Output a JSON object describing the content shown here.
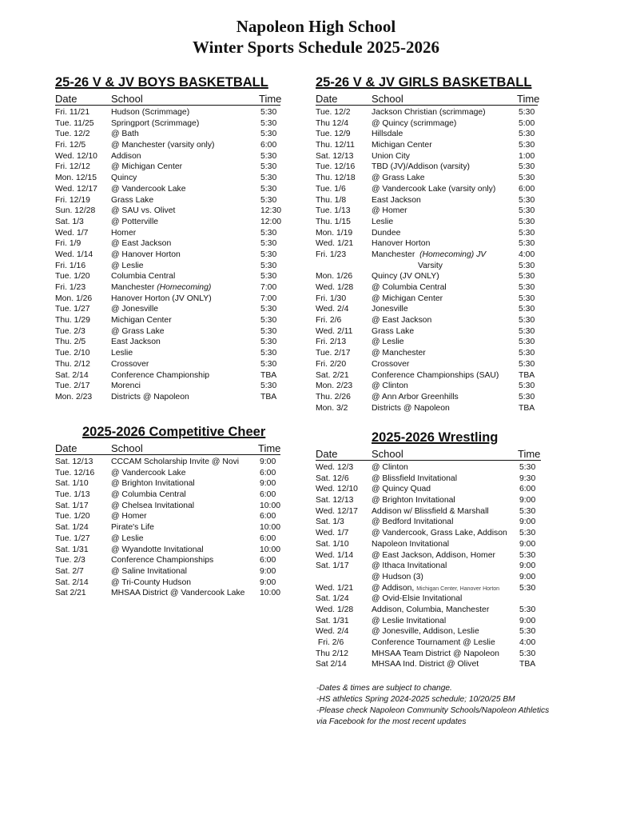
{
  "header": {
    "line1": "Napoleon High School",
    "line2": "Winter Sports Schedule 2025-2026"
  },
  "columns": {
    "date": "Date",
    "school": "School",
    "time": "Time"
  },
  "boys": {
    "title": "25-26 V & JV BOYS BASKETBALL",
    "rows": [
      {
        "date": "Fri. 11/21",
        "school": "Hudson (Scrimmage)",
        "time": "5:30"
      },
      {
        "date": "Tue. 11/25",
        "school": "Springport (Scrimmage)",
        "time": "5:30"
      },
      {
        "date": "Tue. 12/2",
        "school": "@ Bath",
        "time": "5:30"
      },
      {
        "date": "Fri. 12/5",
        "school": "@ Manchester (varsity only)",
        "time": "6:00"
      },
      {
        "date": "Wed. 12/10",
        "school": "Addison",
        "time": "5:30"
      },
      {
        "date": "Fri. 12/12",
        "school": "@ Michigan Center",
        "time": "5:30"
      },
      {
        "date": "Mon. 12/15",
        "school": "Quincy",
        "time": "5:30"
      },
      {
        "date": "Wed. 12/17",
        "school": "@ Vandercook Lake",
        "time": "5:30"
      },
      {
        "date": "Fri. 12/19",
        "school": "Grass Lake",
        "time": "5:30"
      },
      {
        "date": "Sun. 12/28",
        "school": "@ SAU vs. Olivet",
        "time": "12:30"
      },
      {
        "date": "Sat. 1/3",
        "school": "@ Potterville",
        "time": "12:00"
      },
      {
        "date": "Wed. 1/7",
        "school": "Homer",
        "time": "5:30"
      },
      {
        "date": "Fri. 1/9",
        "school": "@ East Jackson",
        "time": "5:30"
      },
      {
        "date": "Wed. 1/14",
        "school": "@ Hanover Horton",
        "time": "5:30"
      },
      {
        "date": "Fri. 1/16",
        "school": "@ Leslie",
        "time": "5:30"
      },
      {
        "date": "Tue. 1/20",
        "school": "Columbia Central",
        "time": "5:30"
      },
      {
        "date": "Fri. 1/23",
        "school": "Manchester ",
        "italic": "(Homecoming)",
        "time": "7:00"
      },
      {
        "date": "Mon. 1/26",
        "school": "Hanover Horton (JV ONLY)",
        "time": "7:00"
      },
      {
        "date": "Tue. 1/27",
        "school": "@ Jonesville",
        "time": "5:30"
      },
      {
        "date": "Thu. 1/29",
        "school": "Michigan Center",
        "time": "5:30"
      },
      {
        "date": "Tue. 2/3",
        "school": "@ Grass Lake",
        "time": "5:30"
      },
      {
        "date": "Thu. 2/5",
        "school": "East Jackson",
        "time": "5:30"
      },
      {
        "date": "Tue. 2/10",
        "school": "Leslie",
        "time": "5:30"
      },
      {
        "date": "Thu. 2/12",
        "school": "Crossover",
        "time": "5:30"
      },
      {
        "date": "Sat. 2/14",
        "school": "Conference Championship",
        "time": "TBA"
      },
      {
        "date": "Tue. 2/17",
        "school": "Morenci",
        "time": "5:30"
      },
      {
        "date": "Mon. 2/23",
        "school": "Districts @ Napoleon",
        "time": "TBA"
      }
    ]
  },
  "girls": {
    "title": "25-26 V & JV GIRLS BASKETBALL",
    "rows": [
      {
        "date": "Tue. 12/2",
        "school": "Jackson Christian (scrimmage)",
        "time": "5:30"
      },
      {
        "date": "Thu 12/4",
        "school": "@ Quincy (scrimmage)",
        "time": "5:00"
      },
      {
        "date": "Tue. 12/9",
        "school": "Hillsdale",
        "time": "5:30"
      },
      {
        "date": "Thu. 12/11",
        "school": "Michigan Center",
        "time": "5:30"
      },
      {
        "date": "Sat. 12/13",
        "school": "Union City",
        "time": "1:00"
      },
      {
        "date": "Tue. 12/16",
        "school": "TBD (JV)/Addison (varsity)",
        "time": "5:30"
      },
      {
        "date": "Thu. 12/18",
        "school": "@ Grass Lake",
        "time": "5:30"
      },
      {
        "date": "Tue. 1/6",
        "school": "@ Vandercook Lake (varsity only)",
        "time": "6:00"
      },
      {
        "date": "Thu. 1/8",
        "school": "East Jackson",
        "time": "5:30"
      },
      {
        "date": "Tue. 1/13",
        "school": "@ Homer",
        "time": "5:30"
      },
      {
        "date": "Thu. 1/15",
        "school": "Leslie",
        "time": "5:30"
      },
      {
        "date": "Mon. 1/19",
        "school": "Dundee",
        "time": "5:30"
      },
      {
        "date": "Wed. 1/21",
        "school": "Hanover Horton",
        "time": "5:30"
      },
      {
        "date": "Fri. 1/23",
        "school": "Manchester  ",
        "italic": "(Homecoming) JV",
        "time": "4:00"
      },
      {
        "date": "",
        "school": "",
        "indent": "Varsity",
        "time": "5:30"
      },
      {
        "date": "Mon. 1/26",
        "school": "Quincy (JV ONLY)",
        "time": "5:30"
      },
      {
        "date": "Wed. 1/28",
        "school": "@ Columbia Central",
        "time": "5:30"
      },
      {
        "date": "Fri. 1/30",
        "school": "@ Michigan Center",
        "time": "5:30"
      },
      {
        "date": "Wed. 2/4",
        "school": "Jonesville",
        "time": "5:30"
      },
      {
        "date": "Fri. 2/6",
        "school": "@ East Jackson",
        "time": "5:30"
      },
      {
        "date": "Wed. 2/11",
        "school": "Grass Lake",
        "time": "5:30"
      },
      {
        "date": "Fri. 2/13",
        "school": "@ Leslie",
        "time": "5:30"
      },
      {
        "date": "Tue. 2/17",
        "school": "@ Manchester",
        "time": "5:30"
      },
      {
        "date": "Fri. 2/20",
        "school": "Crossover",
        "time": "5:30"
      },
      {
        "date": "Sat. 2/21",
        "school": "Conference Championships (SAU)",
        "time": "TBA"
      },
      {
        "date": "Mon. 2/23",
        "school": "@ Clinton",
        "time": "5:30"
      },
      {
        "date": "Thu. 2/26",
        "school": "@ Ann Arbor Greenhills",
        "time": "5:30"
      },
      {
        "date": "Mon. 3/2",
        "school": "Districts @ Napoleon",
        "time": "TBA"
      }
    ]
  },
  "cheer": {
    "title": "2025-2026 Competitive Cheer",
    "rows": [
      {
        "date": "Sat. 12/13",
        "school": "CCCAM Scholarship Invite @ Novi",
        "time": "9:00"
      },
      {
        "date": "Tue. 12/16",
        "school": "@ Vandercook Lake",
        "time": "6:00"
      },
      {
        "date": "Sat. 1/10",
        "school": "@ Brighton Invitational",
        "time": "9:00"
      },
      {
        "date": "Tue. 1/13",
        "school": "@ Columbia Central",
        "time": "6:00"
      },
      {
        "date": "Sat. 1/17",
        "school": "@ Chelsea Invitational",
        "time": "10:00"
      },
      {
        "date": "Tue. 1/20",
        "school": "@ Homer",
        "time": "6:00"
      },
      {
        "date": "Sat. 1/24",
        "school": "Pirate's Life",
        "time": "10:00"
      },
      {
        "date": "Tue. 1/27",
        "school": "@ Leslie",
        "time": "6:00"
      },
      {
        "date": "Sat. 1/31",
        "school": "@ Wyandotte Invitational",
        "time": "10:00"
      },
      {
        "date": "Tue. 2/3",
        "school": "Conference Championships",
        "time": "6:00"
      },
      {
        "date": "Sat. 2/7",
        "school": "@ Saline Invitational",
        "time": "9:00"
      },
      {
        "date": "Sat. 2/14",
        "school": "@ Tri-County Hudson",
        "time": "9:00"
      },
      {
        "date": "Sat 2/21",
        "school": "MHSAA District @ Vandercook Lake",
        "time": "10:00"
      }
    ]
  },
  "wrestling": {
    "title": "2025-2026 Wrestling",
    "rows": [
      {
        "date": "Wed. 12/3",
        "school": "@ Clinton",
        "time": "5:30"
      },
      {
        "date": "Sat. 12/6",
        "school": "@ Blissfield Invitational",
        "time": "9:30"
      },
      {
        "date": "Wed. 12/10",
        "school": "@ Quincy Quad",
        "time": "6:00"
      },
      {
        "date": "Sat. 12/13",
        "school": "@ Brighton Invitational",
        "time": "9:00"
      },
      {
        "date": "Wed. 12/17",
        "school": "Addison w/ Blissfield & Marshall",
        "time": "5:30"
      },
      {
        "date": "Sat. 1/3",
        "school": "@ Bedford Invitational",
        "time": "9:00"
      },
      {
        "date": "Wed. 1/7",
        "school": "@ Vandercook, Grass Lake, Addison",
        "time": "5:30"
      },
      {
        "date": "Sat. 1/10",
        "school": "Napoleon Invitational",
        "time": "9:00"
      },
      {
        "date": "Wed. 1/14",
        "school": "@ East Jackson, Addison, Homer",
        "time": "5:30"
      },
      {
        "date": "Sat. 1/17",
        "school": "@ Ithaca Invitational",
        "time": "9:00"
      },
      {
        "date": "",
        "school": "@ Hudson (3)",
        "time": "9:00"
      },
      {
        "date": "Wed. 1/21",
        "school": "@ Addison, ",
        "small": "Michigan Center, Hanover Horton",
        "time": "5:30"
      },
      {
        "date": "Sat. 1/24",
        "school": "@ Ovid-Elsie Invitational",
        "time": ""
      },
      {
        "date": "Wed. 1/28",
        "school": "Addison, Columbia, Manchester",
        "time": "5:30"
      },
      {
        "date": "Sat. 1/31",
        "school": "@ Leslie Invitational",
        "time": "9:00"
      },
      {
        "date": "Wed. 2/4",
        "school": "@ Jonesville, Addison, Leslie",
        "time": "5:30"
      },
      {
        "date": " Fri. 2/6",
        "school": "Conference Tournament @ Leslie",
        "time": "4:00"
      },
      {
        "date": "Thu 2/12",
        "school": "MHSAA Team District @ Napoleon",
        "time": "5:30"
      },
      {
        "date": "Sat 2/14",
        "school": "MHSAA Ind. District @ Olivet",
        "time": "TBA"
      }
    ]
  },
  "notes": [
    "-Dates & times are subject to change.",
    "-HS athletics Spring 2024-2025 schedule; 10/20/25 BM",
    "-Please check Napoleon Community Schools/Napoleon Athletics",
    "via Facebook for the most recent updates"
  ]
}
